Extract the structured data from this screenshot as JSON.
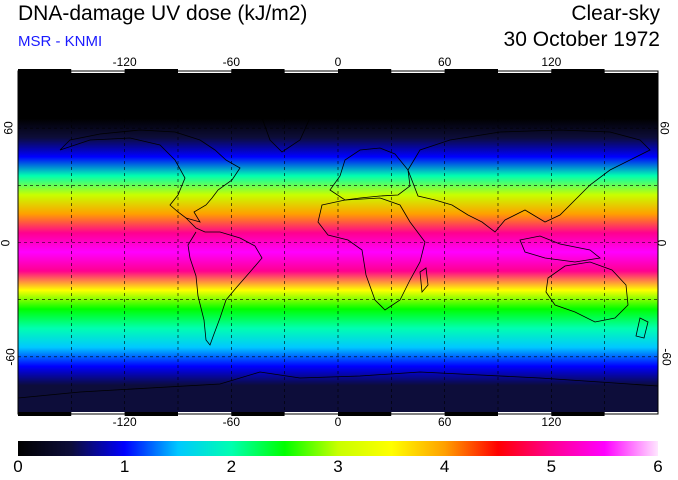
{
  "header": {
    "title": "DNA-damage UV dose (kJ/m2)",
    "source": "MSR - KNMI",
    "condition": "Clear-sky",
    "date": "30 October 1972"
  },
  "colors": {
    "source_text": "#1a1aff",
    "scale": [
      "#000000",
      "#0d0d3a",
      "#0000ff",
      "#00c8ff",
      "#00ffb0",
      "#00ff00",
      "#c8ff00",
      "#ffff00",
      "#ffa000",
      "#ff0000",
      "#ff0090",
      "#ff00ff",
      "#ffe6ff"
    ]
  },
  "map": {
    "projection": "plate-carree",
    "lon_range": [
      -180,
      180
    ],
    "lat_range": [
      -90,
      90
    ],
    "grid_lons": [
      -150,
      -120,
      -90,
      -60,
      -30,
      0,
      30,
      60,
      90,
      120,
      150
    ],
    "grid_lats": [
      -60,
      -30,
      0,
      30,
      60
    ],
    "lon_ticks": [
      {
        "value": -120,
        "label": "-120"
      },
      {
        "value": -60,
        "label": "-60"
      },
      {
        "value": 0,
        "label": "0"
      },
      {
        "value": 60,
        "label": "60"
      },
      {
        "value": 120,
        "label": "120"
      }
    ],
    "lat_ticks": [
      {
        "value": 60,
        "label": "60"
      },
      {
        "value": 0,
        "label": "0"
      },
      {
        "value": -60,
        "label": "-60"
      }
    ],
    "dose_bands": [
      {
        "lat": 90,
        "value": 0.0
      },
      {
        "lat": 75,
        "value": 0.0
      },
      {
        "lat": 65,
        "value": 0.15
      },
      {
        "lat": 55,
        "value": 0.7
      },
      {
        "lat": 45,
        "value": 1.2
      },
      {
        "lat": 35,
        "value": 2.0
      },
      {
        "lat": 25,
        "value": 3.1
      },
      {
        "lat": 15,
        "value": 4.1
      },
      {
        "lat": 5,
        "value": 4.9
      },
      {
        "lat": -5,
        "value": 5.3
      },
      {
        "lat": -15,
        "value": 4.8
      },
      {
        "lat": -25,
        "value": 3.6
      },
      {
        "lat": -35,
        "value": 2.4
      },
      {
        "lat": -45,
        "value": 1.8
      },
      {
        "lat": -55,
        "value": 1.4
      },
      {
        "lat": -65,
        "value": 1.0
      },
      {
        "lat": -75,
        "value": 0.6
      },
      {
        "lat": -90,
        "value": 0.3
      }
    ]
  },
  "colorbar": {
    "min": 0,
    "max": 6,
    "labels": [
      "0",
      "1",
      "2",
      "3",
      "4",
      "5",
      "6"
    ]
  }
}
